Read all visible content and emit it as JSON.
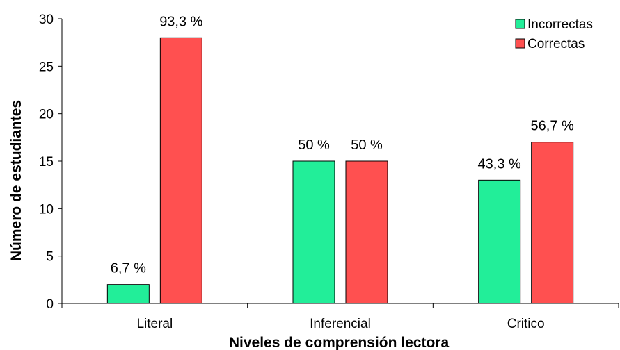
{
  "chart_data": {
    "type": "bar",
    "title": "",
    "xlabel": "Niveles de comprensión lectora",
    "ylabel": "Número de estudiantes",
    "categories": [
      "Literal",
      "Inferencial",
      "Critico"
    ],
    "ylim": [
      0,
      30
    ],
    "yticks": [
      "0",
      "5",
      "10",
      "15",
      "20",
      "25",
      "30"
    ],
    "grid": false,
    "legend_position": "top-right",
    "series": [
      {
        "name": "Incorrectas",
        "color": "#22EE99",
        "values": [
          2,
          15,
          13
        ],
        "labels": [
          "6,7 %",
          "50 %",
          "43,3 %"
        ]
      },
      {
        "name": "Correctas",
        "color": "#FF5050",
        "values": [
          28,
          15,
          17
        ],
        "labels": [
          "93,3 %",
          "50 %",
          "56,7 %"
        ]
      }
    ]
  }
}
